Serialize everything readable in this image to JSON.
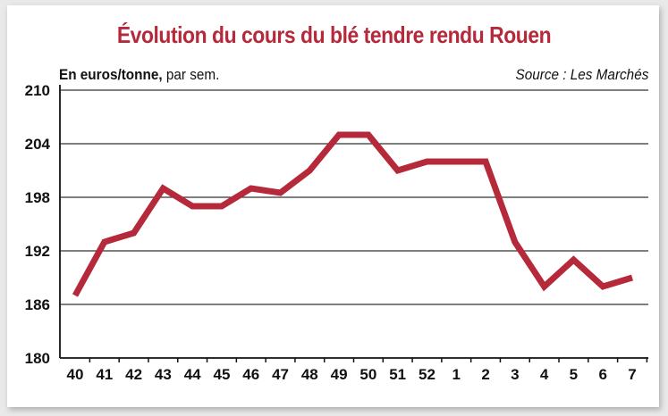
{
  "chart_data": {
    "type": "line",
    "title": "Évolution du cours du blé tendre rendu Rouen",
    "unit_bold": "En euros/tonne,",
    "unit_rest": " par sem.",
    "source": "Source : Les Marchés",
    "categories": [
      "40",
      "41",
      "42",
      "43",
      "44",
      "45",
      "46",
      "47",
      "48",
      "49",
      "50",
      "51",
      "52",
      "1",
      "2",
      "3",
      "4",
      "5",
      "6",
      "7"
    ],
    "series": [
      {
        "values": [
          187,
          193,
          194,
          199,
          197,
          197,
          199,
          198.5,
          201,
          205,
          205,
          201,
          202,
          202,
          202,
          193,
          188,
          191,
          188,
          189
        ]
      }
    ],
    "ylim": [
      180,
      210
    ],
    "yticks": [
      180,
      186,
      192,
      198,
      204,
      210
    ],
    "grid": true,
    "colors": {
      "line": "#b5293b",
      "title": "#b5293b",
      "grid": "#333333"
    }
  }
}
